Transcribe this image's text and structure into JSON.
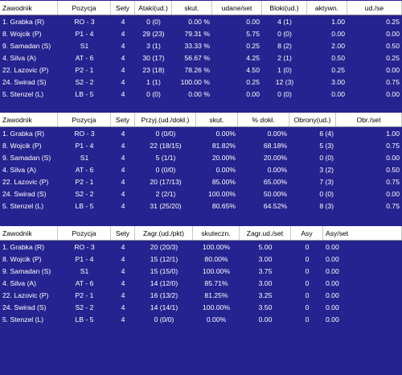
{
  "colors": {
    "background": "#25238f",
    "header_bg": "#ffffff",
    "header_text": "#000000",
    "row_text": "#ffffff"
  },
  "attack_table": {
    "columns": [
      "Zawodnik",
      "Pozycja",
      "Sety",
      "Ataki(ud.)",
      "skut.",
      "udane/set",
      "Bloki(ud.)",
      "aktywn.",
      "ud./se"
    ],
    "rows": [
      [
        "1. Grabka (R)",
        "RO - 3",
        "4",
        "0 (0)",
        "0.00 %",
        "0.00",
        "4 (1)",
        "1.00",
        "0.25"
      ],
      [
        "8. Wojcik (P)",
        "P1 - 4",
        "4",
        "29 (23)",
        "79.31 %",
        "5.75",
        "0 (0)",
        "0.00",
        "0.00"
      ],
      [
        "9. Samadan (S)",
        "S1",
        "4",
        "3 (1)",
        "33.33 %",
        "0.25",
        "8 (2)",
        "2.00",
        "0.50"
      ],
      [
        "4. Silva (A)",
        "AT - 6",
        "4",
        "30 (17)",
        "56.67 %",
        "4.25",
        "2 (1)",
        "0.50",
        "0.25"
      ],
      [
        "22. Lazovic (P)",
        "P2 - 1",
        "4",
        "23 (18)",
        "78.26 %",
        "4.50",
        "1 (0)",
        "0.25",
        "0.00"
      ],
      [
        "24. Swirad (S)",
        "S2 - 2",
        "4",
        "1 (1)",
        "100.00 %",
        "0.25",
        "12 (3)",
        "3.00",
        "0.75"
      ],
      [
        "5. Stenzel (L)",
        "LB - 5",
        "4",
        "0 (0)",
        "0.00 %",
        "0.00",
        "0 (0)",
        "0.00",
        "0.00"
      ]
    ]
  },
  "reception_table": {
    "columns": [
      "Zawodnik",
      "Pozycja",
      "Sety",
      "Przyj.(ud./dokł.)",
      "skut.",
      "% dokł.",
      "Obrony(ud.)",
      "Obr./set"
    ],
    "rows": [
      [
        "1. Grabka (R)",
        "RO - 3",
        "4",
        "0 (0/0)",
        "0.00%",
        "0.00%",
        "6 (4)",
        "1.00"
      ],
      [
        "8. Wojcik (P)",
        "P1 - 4",
        "4",
        "22 (18/15)",
        "81.82%",
        "68.18%",
        "5 (3)",
        "0.75"
      ],
      [
        "9. Samadan (S)",
        "S1",
        "4",
        "5 (1/1)",
        "20.00%",
        "20.00%",
        "0 (0)",
        "0.00"
      ],
      [
        "4. Silva (A)",
        "AT - 6",
        "4",
        "0 (0/0)",
        "0.00%",
        "0.00%",
        "3 (2)",
        "0.50"
      ],
      [
        "22. Lazovic (P)",
        "P2 - 1",
        "4",
        "20 (17/13)",
        "85.00%",
        "65.00%",
        "7 (3)",
        "0.75"
      ],
      [
        "24. Swirad (S)",
        "S2 - 2",
        "4",
        "2 (2/1)",
        "100.00%",
        "50.00%",
        "0 (0)",
        "0.00"
      ],
      [
        "5. Stenzel (L)",
        "LB - 5",
        "4",
        "31 (25/20)",
        "80.65%",
        "64.52%",
        "8 (3)",
        "0.75"
      ]
    ]
  },
  "serve_table": {
    "columns": [
      "Zawodnik",
      "Pozycja",
      "Sety",
      "Zagr.(ud./pkt)",
      "skuteczn.",
      "Zagr.ud./set",
      "Asy",
      "Asy/set"
    ],
    "rows": [
      [
        "1. Grabka (R)",
        "RO - 3",
        "4",
        "20 (20/3)",
        "100.00%",
        "5.00",
        "0",
        "0.00"
      ],
      [
        "8. Wojcik (P)",
        "P1 - 4",
        "4",
        "15 (12/1)",
        "80.00%",
        "3.00",
        "0",
        "0.00"
      ],
      [
        "9. Samadan (S)",
        "S1",
        "4",
        "15 (15/0)",
        "100.00%",
        "3.75",
        "0",
        "0.00"
      ],
      [
        "4. Silva (A)",
        "AT - 6",
        "4",
        "14 (12/0)",
        "85.71%",
        "3.00",
        "0",
        "0.00"
      ],
      [
        "22. Lazovic (P)",
        "P2 - 1",
        "4",
        "16 (13/2)",
        "81.25%",
        "3.25",
        "0",
        "0.00"
      ],
      [
        "24. Swirad (S)",
        "S2 - 2",
        "4",
        "14 (14/1)",
        "100.00%",
        "3.50",
        "0",
        "0.00"
      ],
      [
        "5. Stenzel (L)",
        "LB - 5",
        "4",
        "0 (0/0)",
        "0.00%",
        "0.00",
        "0",
        "0.00"
      ]
    ]
  }
}
